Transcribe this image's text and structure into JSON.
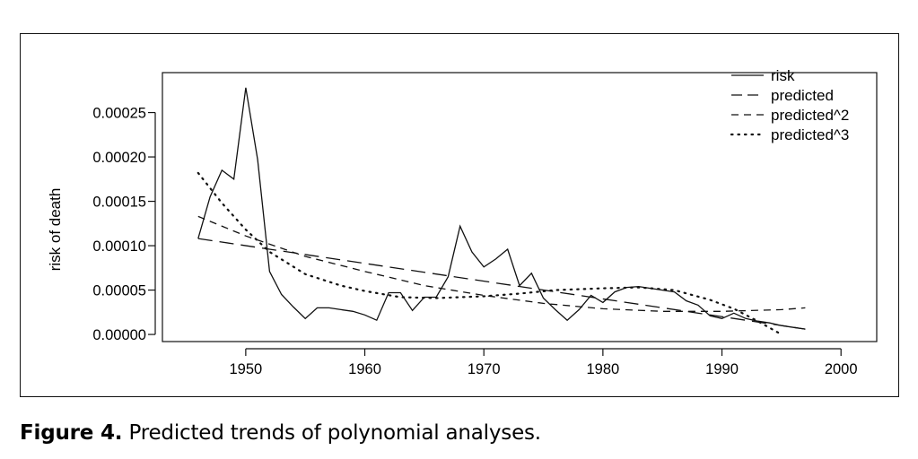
{
  "caption": {
    "label": "Figure 4.",
    "text": "Predicted trends of polynomial analyses."
  },
  "chart_data": {
    "type": "line",
    "ylabel": "risk of death",
    "xlabel": "",
    "xlim": [
      1943,
      2003
    ],
    "ylim": [
      -8e-06,
      0.000295
    ],
    "x_ticks": [
      1950,
      1960,
      1970,
      1980,
      1990,
      2000
    ],
    "x_tick_labels": [
      "1950",
      "1960",
      "1970",
      "1980",
      "1990",
      "2000"
    ],
    "y_ticks": [
      0,
      5e-05,
      0.0001,
      0.00015,
      0.0002,
      0.00025
    ],
    "y_tick_labels": [
      "0.00000",
      "0.00005",
      "0.00010",
      "0.00015",
      "0.00020",
      "0.00025"
    ],
    "grid": false,
    "legend_position": "top-right",
    "series": [
      {
        "name": "risk",
        "style": "solid",
        "x": [
          1946,
          1947,
          1948,
          1949,
          1950,
          1951,
          1952,
          1953,
          1954,
          1955,
          1956,
          1957,
          1958,
          1959,
          1960,
          1961,
          1962,
          1963,
          1964,
          1965,
          1966,
          1967,
          1968,
          1969,
          1970,
          1971,
          1972,
          1973,
          1974,
          1975,
          1976,
          1977,
          1978,
          1979,
          1980,
          1981,
          1982,
          1983,
          1984,
          1985,
          1986,
          1987,
          1988,
          1989,
          1990,
          1991,
          1992,
          1993,
          1994,
          1995,
          1996,
          1997
        ],
        "values": [
          0.000108,
          0.000155,
          0.000185,
          0.000175,
          0.000278,
          0.000197,
          7.1e-05,
          4.5e-05,
          3.1e-05,
          1.8e-05,
          3e-05,
          3e-05,
          2.8e-05,
          2.6e-05,
          2.2e-05,
          1.6e-05,
          4.7e-05,
          4.7e-05,
          2.7e-05,
          4.2e-05,
          4.2e-05,
          6.5e-05,
          0.000122,
          9.3e-05,
          7.6e-05,
          8.5e-05,
          9.6e-05,
          5.5e-05,
          6.9e-05,
          4.1e-05,
          2.8e-05,
          1.6e-05,
          2.8e-05,
          4.4e-05,
          3.6e-05,
          4.8e-05,
          5.3e-05,
          5.4e-05,
          5.2e-05,
          5e-05,
          4.8e-05,
          3.8e-05,
          3.3e-05,
          2.1e-05,
          1.8e-05,
          2.4e-05,
          1.8e-05,
          1.5e-05,
          1.3e-05,
          1e-05,
          8e-06,
          6e-06
        ]
      },
      {
        "name": "predicted",
        "style": "longdash",
        "x": [
          1946,
          1997
        ],
        "values": [
          0.000108,
          6e-06
        ]
      },
      {
        "name": "predicted^2",
        "style": "dash",
        "x": [
          1946,
          1950,
          1955,
          1960,
          1965,
          1970,
          1975,
          1980,
          1985,
          1990,
          1995,
          1997
        ],
        "values": [
          0.000133,
          0.000111,
          8.8e-05,
          7.1e-05,
          5.5e-05,
          4.4e-05,
          3.5e-05,
          2.9e-05,
          2.6e-05,
          2.6e-05,
          2.8e-05,
          3e-05
        ]
      },
      {
        "name": "predicted^3",
        "style": "dot",
        "x": [
          1946,
          1948,
          1950,
          1952,
          1955,
          1958,
          1960,
          1963,
          1966,
          1970,
          1973,
          1976,
          1980,
          1983,
          1986,
          1989,
          1991,
          1993,
          1995
        ],
        "values": [
          0.000182,
          0.000148,
          0.000118,
          9.3e-05,
          6.8e-05,
          5.5e-05,
          4.9e-05,
          4.2e-05,
          4.1e-05,
          4.3e-05,
          4.6e-05,
          5e-05,
          5.2e-05,
          5.3e-05,
          5e-05,
          3.9e-05,
          2.9e-05,
          1.5e-05,
          0.0
        ]
      }
    ]
  }
}
